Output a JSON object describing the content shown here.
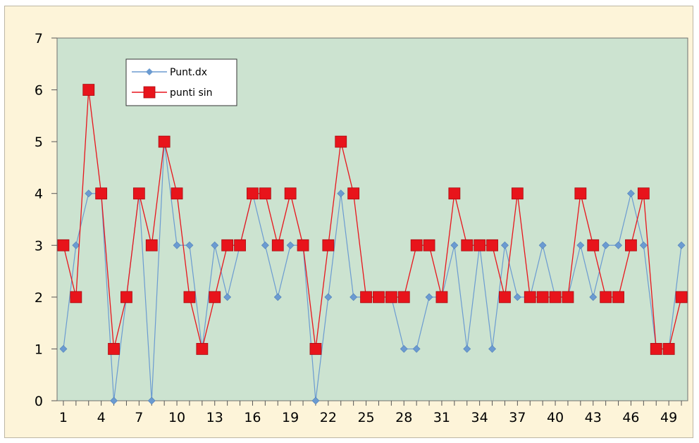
{
  "chart_data": {
    "type": "line",
    "title": "",
    "xlabel": "",
    "ylabel": "",
    "x": [
      1,
      2,
      3,
      4,
      5,
      6,
      7,
      8,
      9,
      10,
      11,
      12,
      13,
      14,
      15,
      16,
      17,
      18,
      19,
      20,
      21,
      22,
      23,
      24,
      25,
      26,
      27,
      28,
      29,
      30,
      31,
      32,
      33,
      34,
      35,
      36,
      37,
      38,
      39,
      40,
      41,
      42,
      43,
      44,
      45,
      46,
      47,
      48,
      49,
      50
    ],
    "xtick_labels": [
      "1",
      "4",
      "7",
      "10",
      "13",
      "16",
      "19",
      "22",
      "25",
      "28",
      "31",
      "34",
      "37",
      "40",
      "43",
      "46",
      "49"
    ],
    "ylim": [
      0,
      7
    ],
    "ytick_labels": [
      "0",
      "1",
      "2",
      "3",
      "4",
      "5",
      "6",
      "7"
    ],
    "grid": false,
    "legend_position": "top-left",
    "plot_background": "#cce3d0",
    "frame_background": "#fdf4d9",
    "series": [
      {
        "name": "Punt.dx",
        "color": "#6b9bd1",
        "marker": "diamond",
        "values": [
          1,
          3,
          4,
          4,
          0,
          2,
          4,
          0,
          5,
          3,
          3,
          1,
          3,
          2,
          3,
          4,
          3,
          2,
          3,
          3,
          0,
          2,
          4,
          2,
          2,
          2,
          2,
          1,
          1,
          2,
          2,
          3,
          1,
          3,
          1,
          3,
          2,
          2,
          3,
          2,
          2,
          3,
          2,
          3,
          3,
          4,
          3,
          1,
          1,
          3
        ]
      },
      {
        "name": "punti sin",
        "color": "#e8141b",
        "marker": "square",
        "values": [
          3,
          2,
          6,
          4,
          1,
          2,
          4,
          3,
          5,
          4,
          2,
          1,
          2,
          3,
          3,
          4,
          4,
          3,
          4,
          3,
          1,
          3,
          5,
          4,
          2,
          2,
          2,
          2,
          3,
          3,
          2,
          4,
          3,
          3,
          3,
          2,
          4,
          2,
          2,
          2,
          2,
          4,
          3,
          2,
          2,
          3,
          4,
          1,
          1,
          2
        ]
      }
    ]
  }
}
